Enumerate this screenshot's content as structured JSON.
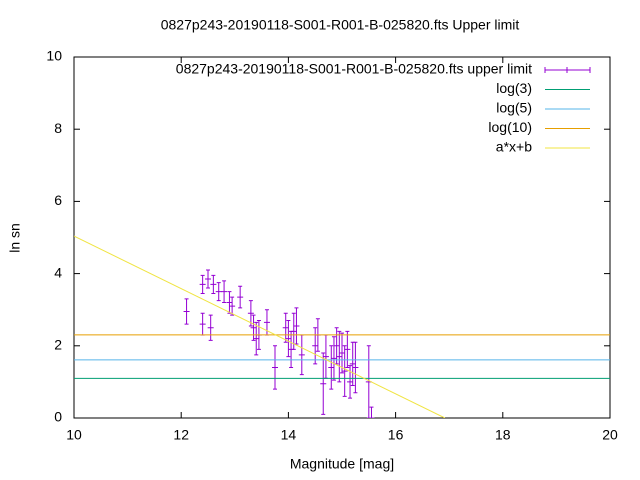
{
  "chart_data": {
    "type": "scatter",
    "title": "0827p243-20190118-S001-R001-B-025820.fts Upper limit",
    "x_label": "Magnitude [mag]",
    "y_label": "ln sn",
    "xlim": [
      10,
      20
    ],
    "xticks": [
      10,
      12,
      14,
      16,
      18,
      20
    ],
    "ylim": [
      0,
      10
    ],
    "yticks": [
      0,
      2,
      4,
      6,
      8,
      10
    ],
    "legend": "top right",
    "series": [
      {
        "name": "0827p243-20190118-S001-R001-B-025820.fts upper limit",
        "color": "#9400d3",
        "x": [
          12.1,
          12.4,
          12.4,
          12.5,
          12.55,
          12.6,
          12.7,
          12.8,
          12.9,
          12.95,
          13.1,
          13.3,
          13.35,
          13.4,
          13.45,
          13.6,
          13.75,
          13.95,
          14.0,
          14.05,
          14.1,
          14.15,
          14.25,
          14.5,
          14.55,
          14.65,
          14.7,
          14.8,
          14.85,
          14.9,
          14.95,
          15.0,
          15.05,
          15.1,
          15.15,
          15.2,
          15.25,
          15.5,
          15.55
        ],
        "values": [
          2.95,
          3.7,
          2.6,
          3.85,
          2.5,
          3.7,
          3.5,
          3.5,
          3.2,
          3.1,
          3.35,
          2.9,
          2.5,
          2.2,
          2.3,
          2.65,
          1.4,
          2.5,
          2.2,
          1.9,
          2.4,
          2.55,
          1.75,
          2.0,
          2.3,
          0.95,
          1.7,
          1.4,
          1.65,
          2.0,
          1.7,
          1.8,
          1.3,
          1.9,
          1.0,
          1.5,
          1.4,
          1.0,
          0.0
        ],
        "errors": [
          0.35,
          0.25,
          0.3,
          0.25,
          0.35,
          0.25,
          0.25,
          0.3,
          0.3,
          0.25,
          0.3,
          0.35,
          0.35,
          0.45,
          0.4,
          0.35,
          0.6,
          0.4,
          0.5,
          0.5,
          0.5,
          0.5,
          0.55,
          0.5,
          0.45,
          0.85,
          0.6,
          0.6,
          0.6,
          0.5,
          0.7,
          0.55,
          0.7,
          0.5,
          0.45,
          0.6,
          0.7,
          1.0,
          0.3
        ]
      },
      {
        "name": "log(3)",
        "color": "#009e73",
        "x": [
          10,
          20
        ],
        "values": [
          1.0986,
          1.0986
        ]
      },
      {
        "name": "log(5)",
        "color": "#56b4e9",
        "x": [
          10,
          20
        ],
        "values": [
          1.6094,
          1.6094
        ]
      },
      {
        "name": "log(10)",
        "color": "#e69f00",
        "x": [
          10,
          20
        ],
        "values": [
          2.3026,
          2.3026
        ]
      },
      {
        "name": "a*x+b",
        "color": "#f0e442",
        "x": [
          10,
          16.92
        ],
        "values": [
          5.04,
          0
        ]
      }
    ]
  }
}
